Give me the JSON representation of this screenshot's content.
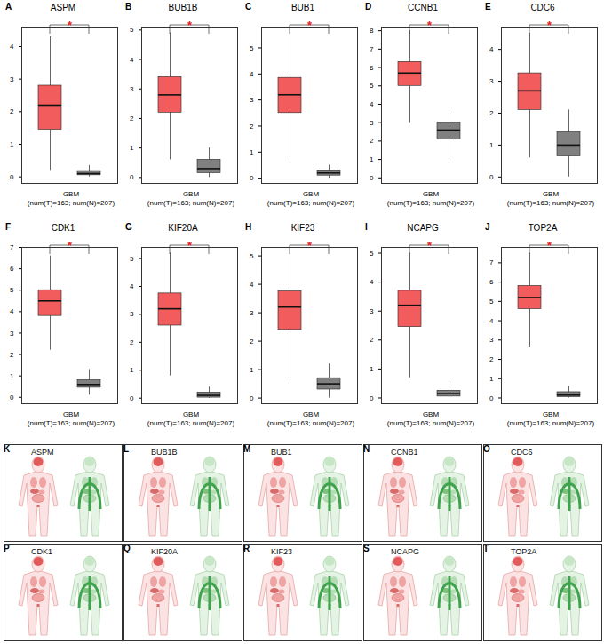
{
  "chart_data": [
    {
      "type": "box",
      "panel": "A",
      "title": "ASPM",
      "categories": [
        null,
        null
      ],
      "colors": [
        "#f25c5c",
        "#808080"
      ],
      "x_label_lines": [
        "GBM",
        "(num(T)=163; num(N)=207)"
      ],
      "annotation": "*",
      "ylim": [
        -0.2,
        4.6
      ],
      "yticks": [
        0,
        1,
        2,
        3,
        4
      ],
      "boxes": [
        {
          "low": 0.2,
          "q1": 1.45,
          "median": 2.2,
          "q3": 2.8,
          "high": 4.3
        },
        {
          "low": 0,
          "q1": 0.05,
          "median": 0.1,
          "q3": 0.18,
          "high": 0.35
        }
      ]
    },
    {
      "type": "box",
      "panel": "B",
      "title": "BUB1B",
      "categories": [
        null,
        null
      ],
      "colors": [
        "#f25c5c",
        "#808080"
      ],
      "x_label_lines": [
        "GBM",
        "(num(T)=163; num(N)=207)"
      ],
      "annotation": "*",
      "ylim": [
        -0.2,
        5.1
      ],
      "yticks": [
        0,
        1,
        2,
        3,
        4,
        5
      ],
      "boxes": [
        {
          "low": 0.6,
          "q1": 2.2,
          "median": 2.8,
          "q3": 3.4,
          "high": 4.9
        },
        {
          "low": 0,
          "q1": 0.15,
          "median": 0.3,
          "q3": 0.6,
          "high": 1.0
        }
      ]
    },
    {
      "type": "box",
      "panel": "C",
      "title": "BUB1",
      "categories": [
        null,
        null
      ],
      "colors": [
        "#f25c5c",
        "#808080"
      ],
      "x_label_lines": [
        "GBM",
        "(num(T)=163; num(N)=207)"
      ],
      "annotation": "*",
      "ylim": [
        -0.2,
        5.8
      ],
      "yticks": [
        0,
        1,
        2,
        3,
        4,
        5
      ],
      "boxes": [
        {
          "low": 0.7,
          "q1": 2.5,
          "median": 3.2,
          "q3": 3.85,
          "high": 5.6
        },
        {
          "low": 0,
          "q1": 0.1,
          "median": 0.2,
          "q3": 0.3,
          "high": 0.5
        }
      ]
    },
    {
      "type": "box",
      "panel": "D",
      "title": "CCNB1",
      "categories": [
        null,
        null
      ],
      "colors": [
        "#f25c5c",
        "#808080"
      ],
      "x_label_lines": [
        "GBM",
        "(num(T)=163; num(N)=207)"
      ],
      "annotation": "*",
      "ylim": [
        -0.3,
        8.2
      ],
      "yticks": [
        0,
        1,
        2,
        3,
        4,
        5,
        6,
        7,
        8
      ],
      "boxes": [
        {
          "low": 3.0,
          "q1": 5.0,
          "median": 5.7,
          "q3": 6.3,
          "high": 8.0
        },
        {
          "low": 0.8,
          "q1": 2.1,
          "median": 2.6,
          "q3": 3.0,
          "high": 3.8
        }
      ]
    },
    {
      "type": "box",
      "panel": "E",
      "title": "CDC6",
      "categories": [
        null,
        null
      ],
      "colors": [
        "#f25c5c",
        "#808080"
      ],
      "x_label_lines": [
        "GBM",
        "(num(T)=163; num(N)=207)"
      ],
      "annotation": "*",
      "ylim": [
        -0.2,
        4.7
      ],
      "yticks": [
        0,
        1,
        2,
        3,
        4
      ],
      "boxes": [
        {
          "low": 0.6,
          "q1": 2.1,
          "median": 2.7,
          "q3": 3.25,
          "high": 4.5
        },
        {
          "low": 0,
          "q1": 0.65,
          "median": 1.0,
          "q3": 1.4,
          "high": 2.1
        }
      ]
    },
    {
      "type": "box",
      "panel": "F",
      "title": "CDK1",
      "categories": [
        null,
        null
      ],
      "colors": [
        "#f25c5c",
        "#808080"
      ],
      "x_label_lines": [
        "GBM",
        "(num(T)=163; num(N)=207)"
      ],
      "annotation": "*",
      "ylim": [
        -0.3,
        7.0
      ],
      "yticks": [
        0,
        1,
        2,
        3,
        4,
        5,
        6,
        7
      ],
      "boxes": [
        {
          "low": 2.2,
          "q1": 3.8,
          "median": 4.5,
          "q3": 5.0,
          "high": 6.6
        },
        {
          "low": 0.1,
          "q1": 0.45,
          "median": 0.6,
          "q3": 0.8,
          "high": 1.3
        }
      ]
    },
    {
      "type": "box",
      "panel": "G",
      "title": "KIF20A",
      "categories": [
        null,
        null
      ],
      "colors": [
        "#f25c5c",
        "#808080"
      ],
      "x_label_lines": [
        "GBM",
        "(num(T)=163; num(N)=207)"
      ],
      "annotation": "*",
      "ylim": [
        -0.2,
        5.4
      ],
      "yticks": [
        0,
        1,
        2,
        3,
        4,
        5
      ],
      "boxes": [
        {
          "low": 0.8,
          "q1": 2.6,
          "median": 3.2,
          "q3": 3.75,
          "high": 5.2
        },
        {
          "low": 0,
          "q1": 0.02,
          "median": 0.1,
          "q3": 0.2,
          "high": 0.4
        }
      ]
    },
    {
      "type": "box",
      "panel": "H",
      "title": "KIF23",
      "categories": [
        null,
        null
      ],
      "colors": [
        "#f25c5c",
        "#808080"
      ],
      "x_label_lines": [
        "GBM",
        "(num(T)=163; num(N)=207)"
      ],
      "annotation": "*",
      "ylim": [
        -0.2,
        5.3
      ],
      "yticks": [
        0,
        1,
        2,
        3,
        4,
        5
      ],
      "boxes": [
        {
          "low": 0.6,
          "q1": 2.4,
          "median": 3.2,
          "q3": 3.75,
          "high": 5.1
        },
        {
          "low": 0,
          "q1": 0.3,
          "median": 0.5,
          "q3": 0.7,
          "high": 1.2
        }
      ]
    },
    {
      "type": "box",
      "panel": "I",
      "title": "NCAPG",
      "categories": [
        null,
        null
      ],
      "colors": [
        "#f25c5c",
        "#808080"
      ],
      "x_label_lines": [
        "GBM",
        "(num(T)=163; num(N)=207)"
      ],
      "annotation": "*",
      "ylim": [
        -0.2,
        5.2
      ],
      "yticks": [
        0,
        1,
        2,
        3,
        4,
        5
      ],
      "boxes": [
        {
          "low": 0.7,
          "q1": 2.45,
          "median": 3.2,
          "q3": 3.7,
          "high": 5.0
        },
        {
          "low": 0,
          "q1": 0.05,
          "median": 0.15,
          "q3": 0.25,
          "high": 0.5
        }
      ]
    },
    {
      "type": "box",
      "panel": "J",
      "title": "TOP2A",
      "categories": [
        null,
        null
      ],
      "colors": [
        "#f25c5c",
        "#808080"
      ],
      "x_label_lines": [
        "GBM",
        "(num(T)=163; num(N)=207)"
      ],
      "annotation": "*",
      "ylim": [
        -0.3,
        7.8
      ],
      "yticks": [
        0,
        1,
        2,
        3,
        4,
        5,
        6,
        7
      ],
      "boxes": [
        {
          "low": 2.6,
          "q1": 4.6,
          "median": 5.2,
          "q3": 5.8,
          "high": 7.5
        },
        {
          "low": 0,
          "q1": 0.05,
          "median": 0.15,
          "q3": 0.3,
          "high": 0.6
        }
      ]
    }
  ],
  "body_maps": [
    {
      "panel": "K",
      "label": "ASPM"
    },
    {
      "panel": "L",
      "label": "BUB1B"
    },
    {
      "panel": "M",
      "label": "BUB1"
    },
    {
      "panel": "N",
      "label": "CCNB1"
    },
    {
      "panel": "O",
      "label": "CDC6"
    },
    {
      "panel": "P",
      "label": "CDK1"
    },
    {
      "panel": "Q",
      "label": "KIF20A"
    },
    {
      "panel": "R",
      "label": "KIF23"
    },
    {
      "panel": "S",
      "label": "NCAPG"
    },
    {
      "panel": "T",
      "label": "TOP2A"
    }
  ]
}
